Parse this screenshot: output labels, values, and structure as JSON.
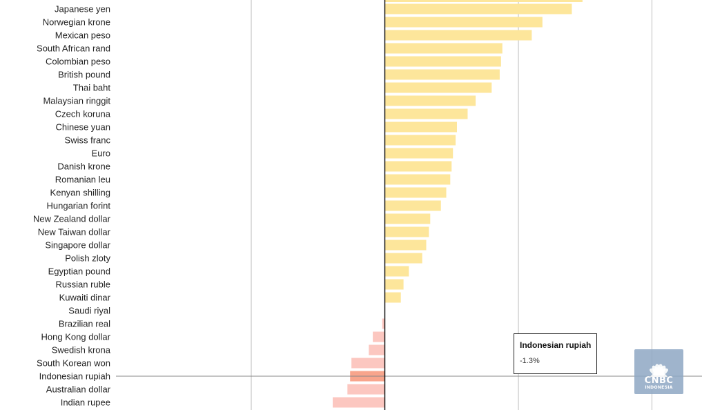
{
  "chart_data": {
    "type": "bar",
    "orientation": "horizontal",
    "categories": [
      "Japanese yen",
      "Norwegian krone",
      "Mexican peso",
      "South African rand",
      "Colombian peso",
      "British pound",
      "Thai baht",
      "Malaysian ringgit",
      "Czech koruna",
      "Chinese yuan",
      "Swiss franc",
      "Euro",
      "Danish krone",
      "Romanian leu",
      "Kenyan shilling",
      "Hungarian forint",
      "New Zealand dollar",
      "New Taiwan dollar",
      "Singapore dollar",
      "Polish zloty",
      "Egyptian pound",
      "Russian ruble",
      "Kuwaiti dinar",
      "Saudi riyal",
      "Brazilian real",
      "Hong Kong dollar",
      "Swedish krona",
      "South Korean won",
      "Indonesian rupiah",
      "Australian dollar",
      "Indian rupee"
    ],
    "values": [
      7.0,
      5.9,
      5.5,
      4.4,
      4.35,
      4.3,
      4.0,
      3.4,
      3.1,
      2.7,
      2.65,
      2.55,
      2.5,
      2.45,
      2.3,
      2.1,
      1.7,
      1.65,
      1.55,
      1.4,
      0.9,
      0.7,
      0.6,
      0.0,
      -0.1,
      -0.45,
      -0.6,
      -1.25,
      -1.3,
      -1.4,
      -1.95
    ],
    "highlight": "Indonesian rupiah",
    "colors": {
      "positive": "#fde69b",
      "negative": "#fcc7c0",
      "highlight": "#f8a58c",
      "zero_line": "#111111",
      "grid": "#bbbbbb",
      "crosshair": "#888888"
    },
    "grid": true
  },
  "tooltip": {
    "title": "Indonesian rupiah",
    "value": "-1.3%"
  },
  "logo": {
    "main": "CNBC",
    "sub": "INDONESIA"
  }
}
